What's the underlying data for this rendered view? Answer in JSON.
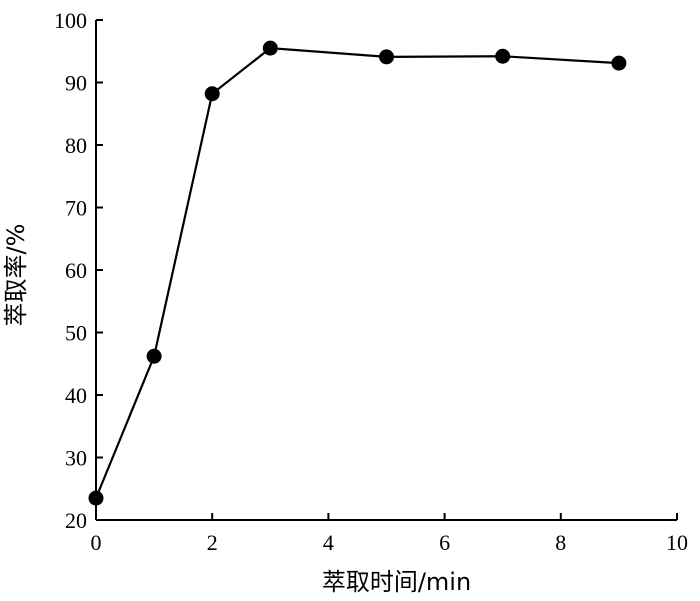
{
  "chart_data": {
    "type": "line",
    "title": "",
    "xlabel": "萃取时间/min",
    "ylabel": "萃取率/%",
    "xlim": [
      0,
      10
    ],
    "ylim": [
      20,
      100
    ],
    "xticks": [
      0,
      2,
      4,
      6,
      8,
      10
    ],
    "yticks": [
      20,
      30,
      40,
      50,
      60,
      70,
      80,
      90,
      100
    ],
    "grid": false,
    "series": [
      {
        "x": [
          0,
          1,
          2,
          3,
          5,
          7,
          9
        ],
        "y": [
          23.5,
          46.2,
          88.2,
          95.5,
          94.1,
          94.2,
          93.1
        ],
        "color": "#000000",
        "marker": "filled-circle"
      }
    ]
  }
}
